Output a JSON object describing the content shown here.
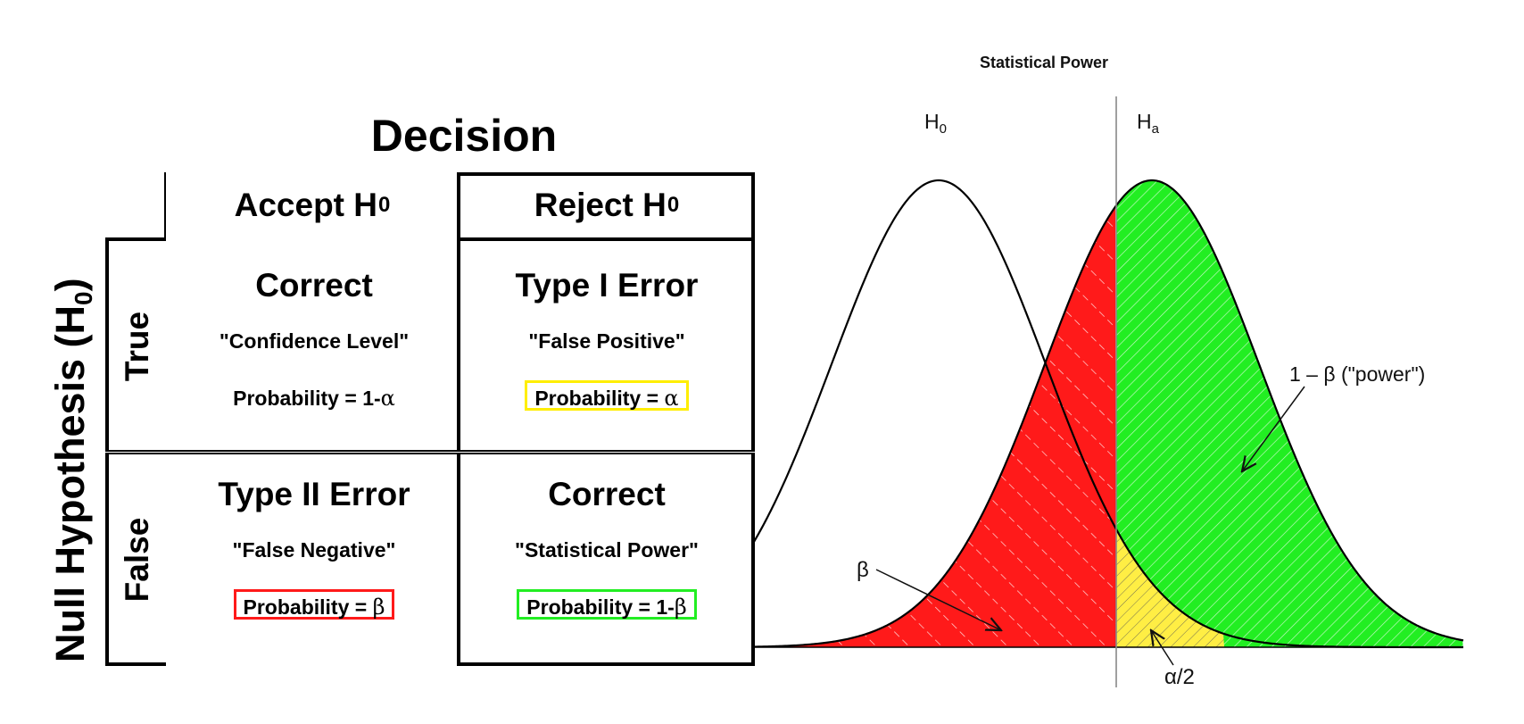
{
  "decision_table": {
    "title": "Decision",
    "row_axis_label": "Null Hypothesis (H",
    "row_axis_sub": "0",
    "row_axis_close": ")",
    "columns": [
      {
        "label": "Accept H",
        "sub": "0"
      },
      {
        "label": "Reject H",
        "sub": "0"
      }
    ],
    "rows": [
      {
        "label": "True"
      },
      {
        "label": "False"
      }
    ],
    "cells": {
      "true_accept": {
        "title": "Correct",
        "quote": "\"Confidence Level\"",
        "prob_text": "Probability = 1-",
        "prob_symbol": "α"
      },
      "true_reject": {
        "title": "Type I Error",
        "quote": "\"False Positive\"",
        "prob_text": "Probability = ",
        "prob_symbol": "α"
      },
      "false_accept": {
        "title": "Type II Error",
        "quote": "\"False Negative\"",
        "prob_text": "Probability = ",
        "prob_symbol": "β"
      },
      "false_reject": {
        "title": "Correct",
        "quote": "\"Statistical Power\"",
        "prob_text": "Probability = 1-",
        "prob_symbol": "β"
      }
    },
    "colors": {
      "type1_box": "#ffee00",
      "type2_box": "#ff1a1a",
      "power_box": "#22ee22"
    }
  },
  "chart": {
    "title": "Statistical Power",
    "h0_label": "H",
    "h0_sub": "0",
    "ha_label": "H",
    "ha_sub": "a",
    "beta_label": "β",
    "power_label": "1 – β  (\"power\")",
    "alpha_label": "α/2",
    "colors": {
      "beta_region": "#ff1a1a",
      "power_region": "#22ee22",
      "alpha_region": "#ffee44",
      "curve": "#000000",
      "critical_line": "#888888"
    }
  }
}
